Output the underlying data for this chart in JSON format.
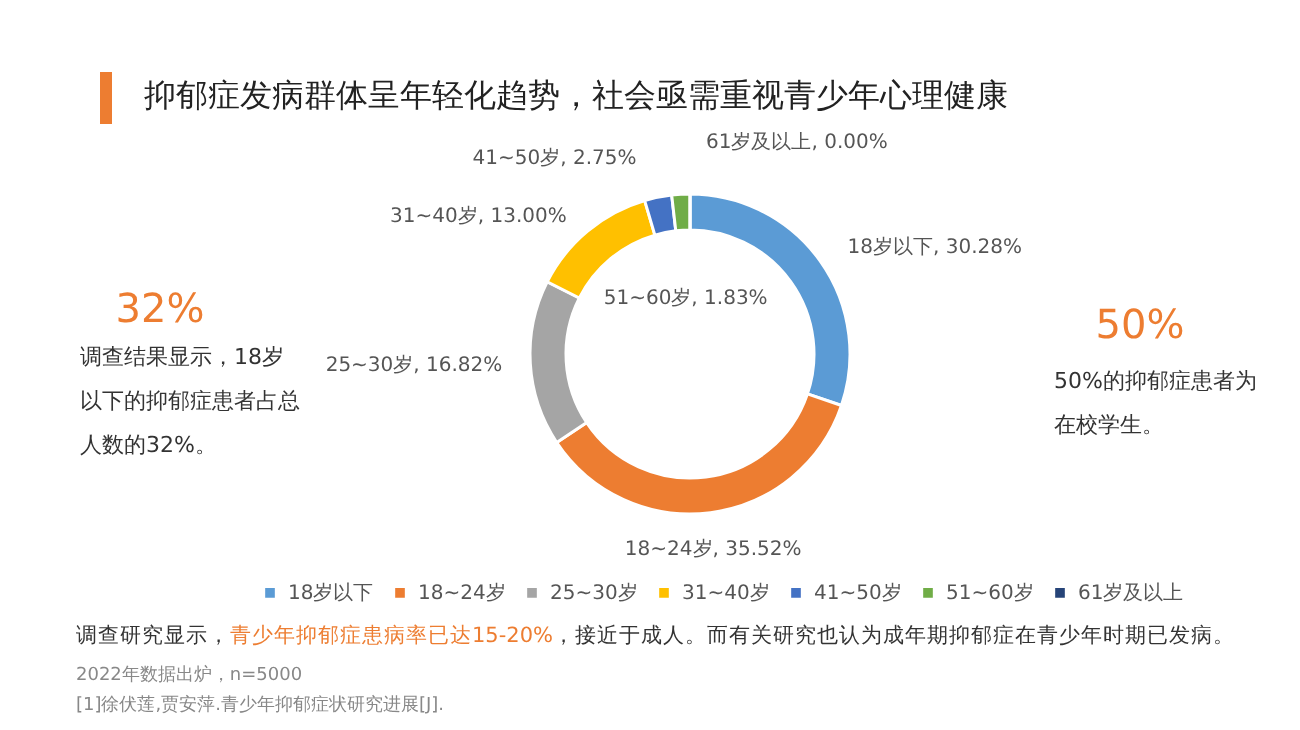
{
  "chart_data": {
    "type": "donut",
    "title": "抑郁症发病群体呈年轻化趋势，社会亟需重视青少年心理健康",
    "categories": [
      "18岁以下",
      "18~24岁",
      "25~30岁",
      "31~40岁",
      "41~50岁",
      "51~60岁",
      "61岁及以上"
    ],
    "values": [
      30.28,
      35.52,
      16.82,
      13.0,
      2.75,
      1.83,
      0.0
    ],
    "colors": [
      "#5b9bd5",
      "#ed7d31",
      "#a5a5a5",
      "#ffc000",
      "#4472c4",
      "#70ad47",
      "#264478"
    ],
    "value_labels": [
      "18岁以下, 30.28%",
      "18~24岁, 35.52%",
      "25~30岁, 16.82%",
      "31~40岁, 13.00%",
      "41~50岁, 2.75%",
      "51~60岁, 1.83%",
      "61岁及以上, 0.00%"
    ],
    "legend": "bottom",
    "annotations": [
      "32%",
      "调查结果显示，18岁以下的抑郁症患者占总人数的32%。",
      "50%",
      "50%的抑郁症患者为在校学生。",
      "调查研究显示，",
      "青少年抑郁症患病率已达15-20%",
      "，接近于成人。而有关研究也认为成年期抑郁症在青少年时期已发病。",
      "2022年数据出炉，n=5000",
      "[1]徐伏莲,贾安萍.青少年抑郁症状研究进展[J]."
    ]
  }
}
